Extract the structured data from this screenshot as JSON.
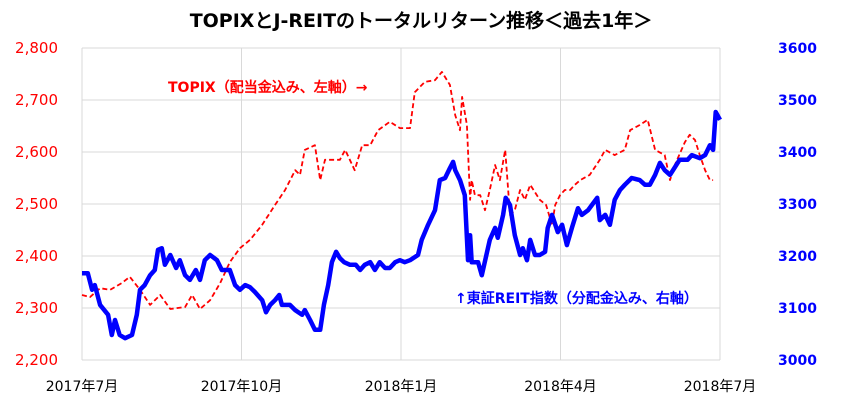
{
  "chart_data": {
    "type": "line",
    "title": "TOPIXとJ-REITのトータルリターン推移＜過去1年＞",
    "x_unit": "months since 2017年7月",
    "xlim": [
      0,
      12
    ],
    "x_ticks": [
      0,
      3,
      6,
      9,
      12
    ],
    "x_tick_labels": [
      "2017年7月",
      "2017年10月",
      "2018年1月",
      "2018年4月",
      "2018年7月"
    ],
    "y_left": {
      "ylim": [
        2200,
        2800
      ],
      "ticks": [
        "2,200",
        "2,300",
        "2,400",
        "2,500",
        "2,600",
        "2,700",
        "2,800"
      ],
      "tick_values": [
        2200,
        2300,
        2400,
        2500,
        2600,
        2700,
        2800
      ]
    },
    "y_right": {
      "ylim": [
        3000,
        3600
      ],
      "ticks": [
        "3000",
        "3100",
        "3200",
        "3300",
        "3400",
        "3500",
        "3600"
      ],
      "tick_values": [
        3000,
        3100,
        3200,
        3300,
        3400,
        3500,
        3600
      ]
    },
    "grid": true,
    "annotations": {
      "topix": "TOPIX（配当金込み、左軸）→",
      "reit": "↑東証REIT指数（分配金込み、右軸）"
    },
    "series": [
      {
        "name": "TOPIX（配当金込み）",
        "axis": "left",
        "color": "#ff0000",
        "style": "dashed",
        "points": [
          [
            0,
            2325
          ],
          [
            0.15,
            2321
          ],
          [
            0.34,
            2338
          ],
          [
            0.53,
            2335
          ],
          [
            0.75,
            2348
          ],
          [
            0.9,
            2360
          ],
          [
            1.09,
            2335
          ],
          [
            1.28,
            2306
          ],
          [
            1.47,
            2325
          ],
          [
            1.66,
            2298
          ],
          [
            1.94,
            2302
          ],
          [
            2.07,
            2325
          ],
          [
            2.22,
            2298
          ],
          [
            2.41,
            2315
          ],
          [
            2.6,
            2348
          ],
          [
            2.78,
            2388
          ],
          [
            2.97,
            2415
          ],
          [
            3.16,
            2431
          ],
          [
            3.39,
            2460
          ],
          [
            3.63,
            2498
          ],
          [
            3.82,
            2527
          ],
          [
            4.01,
            2565
          ],
          [
            4.1,
            2556
          ],
          [
            4.19,
            2604
          ],
          [
            4.38,
            2613
          ],
          [
            4.48,
            2546
          ],
          [
            4.57,
            2585
          ],
          [
            4.85,
            2585
          ],
          [
            4.95,
            2604
          ],
          [
            5.13,
            2565
          ],
          [
            5.27,
            2613
          ],
          [
            5.42,
            2613
          ],
          [
            5.57,
            2642
          ],
          [
            5.79,
            2658
          ],
          [
            5.98,
            2646
          ],
          [
            6.17,
            2646
          ],
          [
            6.26,
            2715
          ],
          [
            6.45,
            2735
          ],
          [
            6.64,
            2738
          ],
          [
            6.77,
            2754
          ],
          [
            6.92,
            2729
          ],
          [
            7.02,
            2671
          ],
          [
            7.11,
            2642
          ],
          [
            7.15,
            2706
          ],
          [
            7.24,
            2652
          ],
          [
            7.3,
            2508
          ],
          [
            7.33,
            2546
          ],
          [
            7.39,
            2517
          ],
          [
            7.49,
            2517
          ],
          [
            7.58,
            2488
          ],
          [
            7.67,
            2527
          ],
          [
            7.77,
            2575
          ],
          [
            7.86,
            2546
          ],
          [
            7.96,
            2604
          ],
          [
            8.05,
            2479
          ],
          [
            8.14,
            2488
          ],
          [
            8.24,
            2527
          ],
          [
            8.33,
            2508
          ],
          [
            8.43,
            2537
          ],
          [
            8.61,
            2508
          ],
          [
            8.73,
            2498
          ],
          [
            8.84,
            2460
          ],
          [
            8.9,
            2498
          ],
          [
            8.99,
            2517
          ],
          [
            9.08,
            2527
          ],
          [
            9.18,
            2527
          ],
          [
            9.27,
            2537
          ],
          [
            9.37,
            2546
          ],
          [
            9.55,
            2556
          ],
          [
            9.74,
            2585
          ],
          [
            9.84,
            2604
          ],
          [
            10.02,
            2594
          ],
          [
            10.21,
            2604
          ],
          [
            10.31,
            2642
          ],
          [
            10.49,
            2652
          ],
          [
            10.64,
            2662
          ],
          [
            10.78,
            2604
          ],
          [
            10.96,
            2594
          ],
          [
            11.06,
            2546
          ],
          [
            11.15,
            2575
          ],
          [
            11.34,
            2619
          ],
          [
            11.43,
            2633
          ],
          [
            11.53,
            2623
          ],
          [
            11.62,
            2594
          ],
          [
            11.72,
            2565
          ],
          [
            11.81,
            2546
          ],
          [
            11.87,
            2546
          ]
        ]
      },
      {
        "name": "東証REIT指数（分配金込み）",
        "axis": "right",
        "color": "#0000ff",
        "style": "solid",
        "points": [
          [
            0,
            3167
          ],
          [
            0.11,
            3167
          ],
          [
            0.19,
            3135
          ],
          [
            0.24,
            3144
          ],
          [
            0.34,
            3106
          ],
          [
            0.49,
            3087
          ],
          [
            0.56,
            3048
          ],
          [
            0.62,
            3077
          ],
          [
            0.71,
            3048
          ],
          [
            0.81,
            3042
          ],
          [
            0.94,
            3048
          ],
          [
            1.03,
            3087
          ],
          [
            1.09,
            3135
          ],
          [
            1.18,
            3144
          ],
          [
            1.28,
            3163
          ],
          [
            1.37,
            3173
          ],
          [
            1.43,
            3212
          ],
          [
            1.5,
            3215
          ],
          [
            1.56,
            3183
          ],
          [
            1.66,
            3202
          ],
          [
            1.77,
            3177
          ],
          [
            1.84,
            3192
          ],
          [
            1.94,
            3163
          ],
          [
            2.03,
            3154
          ],
          [
            2.14,
            3173
          ],
          [
            2.22,
            3154
          ],
          [
            2.31,
            3192
          ],
          [
            2.41,
            3202
          ],
          [
            2.54,
            3192
          ],
          [
            2.63,
            3173
          ],
          [
            2.78,
            3173
          ],
          [
            2.88,
            3144
          ],
          [
            2.97,
            3135
          ],
          [
            3.07,
            3144
          ],
          [
            3.16,
            3140
          ],
          [
            3.25,
            3131
          ],
          [
            3.39,
            3115
          ],
          [
            3.46,
            3092
          ],
          [
            3.54,
            3106
          ],
          [
            3.63,
            3115
          ],
          [
            3.71,
            3125
          ],
          [
            3.76,
            3106
          ],
          [
            3.91,
            3106
          ],
          [
            4.01,
            3096
          ],
          [
            4.14,
            3087
          ],
          [
            4.19,
            3096
          ],
          [
            4.29,
            3077
          ],
          [
            4.38,
            3058
          ],
          [
            4.48,
            3058
          ],
          [
            4.55,
            3106
          ],
          [
            4.63,
            3144
          ],
          [
            4.7,
            3188
          ],
          [
            4.78,
            3208
          ],
          [
            4.85,
            3196
          ],
          [
            4.93,
            3188
          ],
          [
            5.04,
            3183
          ],
          [
            5.15,
            3183
          ],
          [
            5.23,
            3173
          ],
          [
            5.32,
            3183
          ],
          [
            5.42,
            3188
          ],
          [
            5.51,
            3173
          ],
          [
            5.6,
            3188
          ],
          [
            5.7,
            3177
          ],
          [
            5.79,
            3177
          ],
          [
            5.89,
            3188
          ],
          [
            5.98,
            3192
          ],
          [
            6.07,
            3188
          ],
          [
            6.17,
            3192
          ],
          [
            6.32,
            3202
          ],
          [
            6.39,
            3231
          ],
          [
            6.51,
            3260
          ],
          [
            6.64,
            3288
          ],
          [
            6.73,
            3346
          ],
          [
            6.83,
            3350
          ],
          [
            6.92,
            3369
          ],
          [
            6.98,
            3381
          ],
          [
            7.02,
            3365
          ],
          [
            7.11,
            3346
          ],
          [
            7.2,
            3317
          ],
          [
            7.26,
            3192
          ],
          [
            7.3,
            3240
          ],
          [
            7.33,
            3188
          ],
          [
            7.45,
            3188
          ],
          [
            7.52,
            3163
          ],
          [
            7.67,
            3231
          ],
          [
            7.77,
            3254
          ],
          [
            7.82,
            3235
          ],
          [
            7.92,
            3279
          ],
          [
            7.97,
            3312
          ],
          [
            8.05,
            3298
          ],
          [
            8.14,
            3240
          ],
          [
            8.24,
            3202
          ],
          [
            8.29,
            3215
          ],
          [
            8.37,
            3192
          ],
          [
            8.43,
            3231
          ],
          [
            8.52,
            3202
          ],
          [
            8.61,
            3202
          ],
          [
            8.71,
            3208
          ],
          [
            8.76,
            3254
          ],
          [
            8.84,
            3279
          ],
          [
            8.95,
            3246
          ],
          [
            9.03,
            3260
          ],
          [
            9.12,
            3221
          ],
          [
            9.22,
            3256
          ],
          [
            9.33,
            3292
          ],
          [
            9.4,
            3279
          ],
          [
            9.52,
            3288
          ],
          [
            9.59,
            3298
          ],
          [
            9.69,
            3312
          ],
          [
            9.74,
            3269
          ],
          [
            9.84,
            3279
          ],
          [
            9.93,
            3260
          ],
          [
            10.02,
            3308
          ],
          [
            10.12,
            3327
          ],
          [
            10.21,
            3337
          ],
          [
            10.34,
            3350
          ],
          [
            10.49,
            3346
          ],
          [
            10.59,
            3337
          ],
          [
            10.68,
            3337
          ],
          [
            10.78,
            3356
          ],
          [
            10.87,
            3379
          ],
          [
            10.96,
            3365
          ],
          [
            11.06,
            3356
          ],
          [
            11.24,
            3385
          ],
          [
            11.39,
            3385
          ],
          [
            11.47,
            3394
          ],
          [
            11.62,
            3388
          ],
          [
            11.72,
            3394
          ],
          [
            11.81,
            3413
          ],
          [
            11.87,
            3404
          ],
          [
            11.92,
            3477
          ],
          [
            12.0,
            3462
          ]
        ]
      }
    ]
  }
}
